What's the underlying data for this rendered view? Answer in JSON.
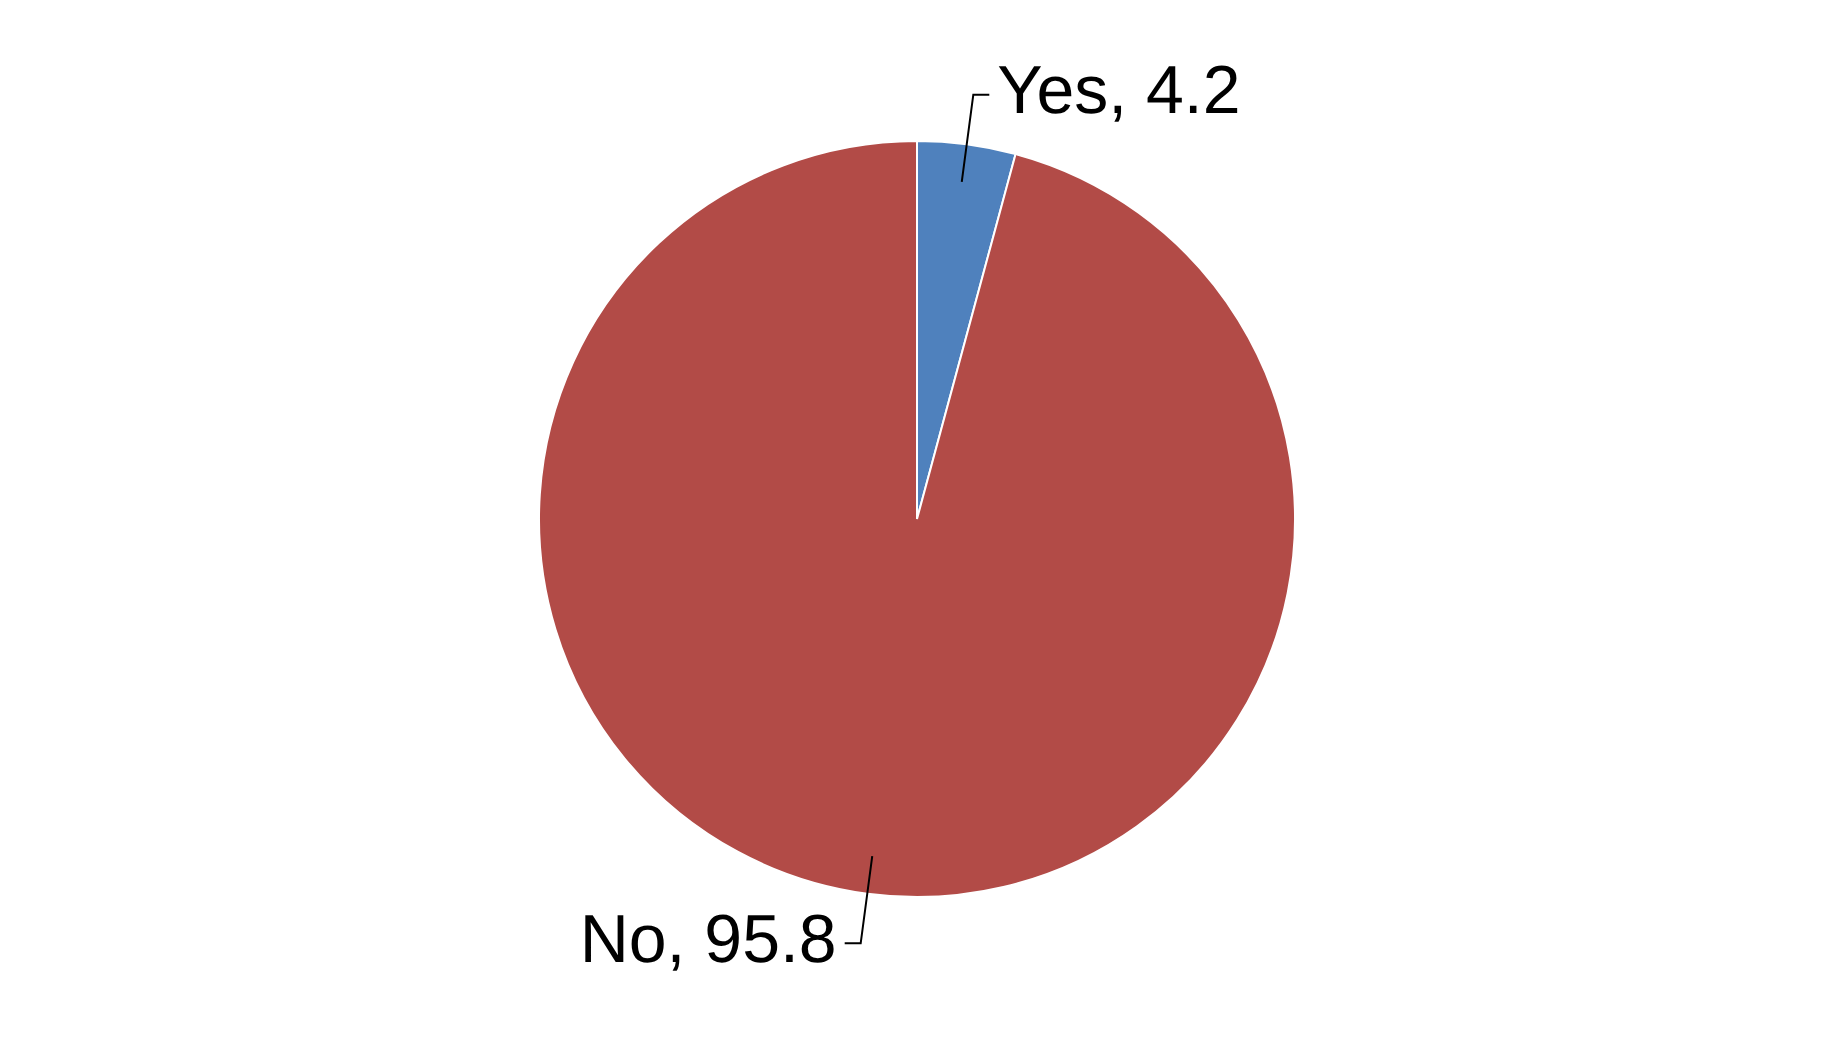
{
  "chart_data": {
    "type": "pie",
    "categories": [
      "Yes",
      "No"
    ],
    "values": [
      4.2,
      95.8
    ],
    "value_labels": [
      ", 4.2",
      ", 95.8"
    ],
    "colors": [
      "#4f81bd",
      "#b24b47"
    ],
    "legend": false
  }
}
